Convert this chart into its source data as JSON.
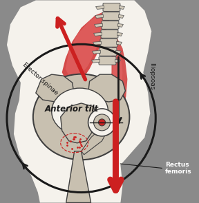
{
  "bg_color": "#8a8a8a",
  "body_color": "#f5f2ec",
  "pelvis_color": "#c8c0b0",
  "pelvis_outline": "#404040",
  "red_color": "#cc2020",
  "red_light": "#e87070",
  "black_color": "#1a1a1a",
  "spine_color": "#d0c8b8",
  "spine_outline": "#505050",
  "label_anterior": "Anterior tilt",
  "label_erector": "Erector spinae",
  "label_iliopsoas": "Iliopsoas",
  "label_rectus": "Rectus\nfemoris",
  "figsize": [
    2.88,
    2.95
  ],
  "dpi": 100
}
